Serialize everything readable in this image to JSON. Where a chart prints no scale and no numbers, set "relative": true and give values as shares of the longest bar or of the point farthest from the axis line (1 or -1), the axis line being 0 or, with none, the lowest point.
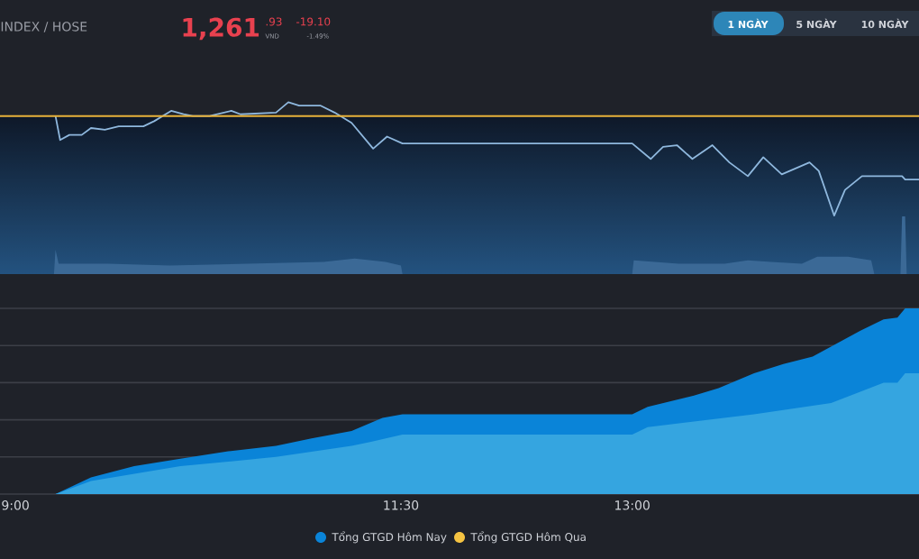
{
  "chart_data": [
    {
      "type": "line",
      "title": "INDEX / HOSE",
      "relative": true,
      "xlim": [
        8.9,
        14.86
      ],
      "annotations": [
        "1,261",
        ".93",
        "VND",
        "-19.10",
        "-1.49%",
        "1 NGÀY",
        "5 NGÀY",
        "10 NGÀY"
      ],
      "ref_lines": [
        {
          "axis": "y",
          "value": 0.92,
          "color": "#e8b23a"
        }
      ],
      "series": [
        {
          "color": "#8fb8de",
          "x": [
            9.26,
            9.29,
            9.35,
            9.43,
            9.49,
            9.58,
            9.67,
            9.83,
            9.9,
            10.01,
            10.09,
            10.15,
            10.26,
            10.4,
            10.46,
            10.69,
            10.77,
            10.84,
            10.98,
            11.07,
            11.18,
            11.32,
            11.41,
            11.51,
            13.0,
            13.12,
            13.2,
            13.29,
            13.39,
            13.52,
            13.63,
            13.75,
            13.85,
            13.97,
            14.15,
            14.21,
            14.31,
            14.38,
            14.49,
            14.75,
            14.77,
            14.86
          ],
          "values": [
            0.92,
            0.78,
            0.81,
            0.81,
            0.85,
            0.84,
            0.86,
            0.86,
            0.89,
            0.95,
            0.93,
            0.92,
            0.92,
            0.95,
            0.93,
            0.94,
            1.0,
            0.98,
            0.98,
            0.94,
            0.88,
            0.73,
            0.8,
            0.76,
            0.76,
            0.67,
            0.74,
            0.75,
            0.67,
            0.75,
            0.65,
            0.57,
            0.68,
            0.58,
            0.65,
            0.6,
            0.34,
            0.49,
            0.57,
            0.57,
            0.55,
            0.55
          ]
        }
      ]
    },
    {
      "type": "area",
      "relative": true,
      "xlim": [
        8.9,
        14.86
      ],
      "series": [
        {
          "color": "#3b6996",
          "x": [
            9.25,
            9.26,
            9.28,
            9.6,
            10.0,
            10.5,
            11.0,
            11.2,
            11.4,
            11.5,
            11.51,
            13.0,
            13.01,
            13.3,
            13.6,
            13.75,
            13.9,
            14.1,
            14.2,
            14.4,
            14.55,
            14.57,
            14.74,
            14.75,
            14.77,
            14.78
          ],
          "values": [
            0,
            0.42,
            0.18,
            0.18,
            0.15,
            0.18,
            0.21,
            0.27,
            0.21,
            0.15,
            0,
            0,
            0.24,
            0.18,
            0.18,
            0.24,
            0.21,
            0.18,
            0.3,
            0.3,
            0.24,
            0,
            0,
            1.0,
            1.0,
            0
          ]
        }
      ]
    },
    {
      "type": "area",
      "relative": true,
      "xlim": [
        8.9,
        14.86
      ],
      "grid": "y",
      "legend": "bottom",
      "xticks": [
        {
          "value": 9,
          "label": "9:00"
        },
        {
          "value": 11.5,
          "label": "11:30"
        },
        {
          "value": 13,
          "label": "13:00"
        }
      ],
      "series": [
        {
          "name": "Tổng GTGD Hôm Nay",
          "color": "#0a84d8",
          "x": [
            9.26,
            9.49,
            9.77,
            10.07,
            10.38,
            10.69,
            10.92,
            11.18,
            11.38,
            11.51,
            13.0,
            13.1,
            13.4,
            13.56,
            13.79,
            13.98,
            14.17,
            14.48,
            14.63,
            14.72,
            14.77,
            14.86
          ],
          "values": [
            0,
            0.09,
            0.15,
            0.19,
            0.23,
            0.26,
            0.3,
            0.34,
            0.41,
            0.43,
            0.43,
            0.47,
            0.53,
            0.57,
            0.65,
            0.7,
            0.74,
            0.88,
            0.94,
            0.95,
            1.0,
            1.0
          ]
        },
        {
          "color": "#35a5e0",
          "x": [
            9.26,
            9.49,
            10.07,
            10.69,
            11.18,
            11.3,
            11.51,
            13.0,
            13.1,
            13.79,
            14.29,
            14.63,
            14.72,
            14.77,
            14.86
          ],
          "values": [
            0,
            0.07,
            0.15,
            0.2,
            0.26,
            0.28,
            0.32,
            0.32,
            0.36,
            0.43,
            0.49,
            0.6,
            0.6,
            0.65,
            0.65
          ]
        },
        {
          "name": "Tổng GTGD Hôm Qua",
          "color": "#f5c342"
        }
      ]
    }
  ]
}
